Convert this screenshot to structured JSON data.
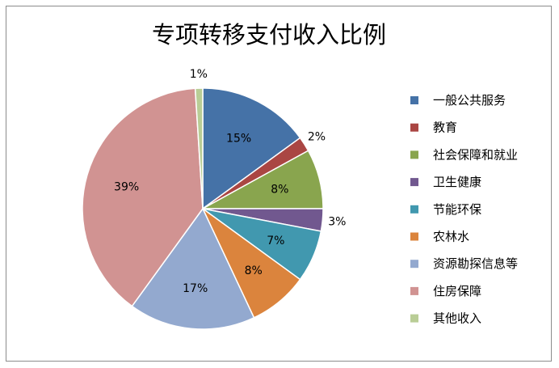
{
  "chart_data": {
    "type": "pie",
    "title": "专项转移支付收入比例",
    "legend_position": "right",
    "slices": [
      {
        "label": "一般公共服务",
        "value": 15,
        "display": "15%",
        "color": "#4572A7"
      },
      {
        "label": "教育",
        "value": 2,
        "display": "2%",
        "color": "#AA4643"
      },
      {
        "label": "社会保障和就业",
        "value": 8,
        "display": "8%",
        "color": "#89A54E"
      },
      {
        "label": "卫生健康",
        "value": 3,
        "display": "3%",
        "color": "#71588F"
      },
      {
        "label": "节能环保",
        "value": 7,
        "display": "7%",
        "color": "#4198AF"
      },
      {
        "label": "农林水",
        "value": 8,
        "display": "8%",
        "color": "#DB843D"
      },
      {
        "label": "资源勘探信息等",
        "value": 17,
        "display": "17%",
        "color": "#93A9CF"
      },
      {
        "label": "住房保障",
        "value": 39,
        "display": "39%",
        "color": "#D19392"
      },
      {
        "label": "其他收入",
        "value": 1,
        "display": "1%",
        "color": "#B9CD96"
      }
    ]
  }
}
